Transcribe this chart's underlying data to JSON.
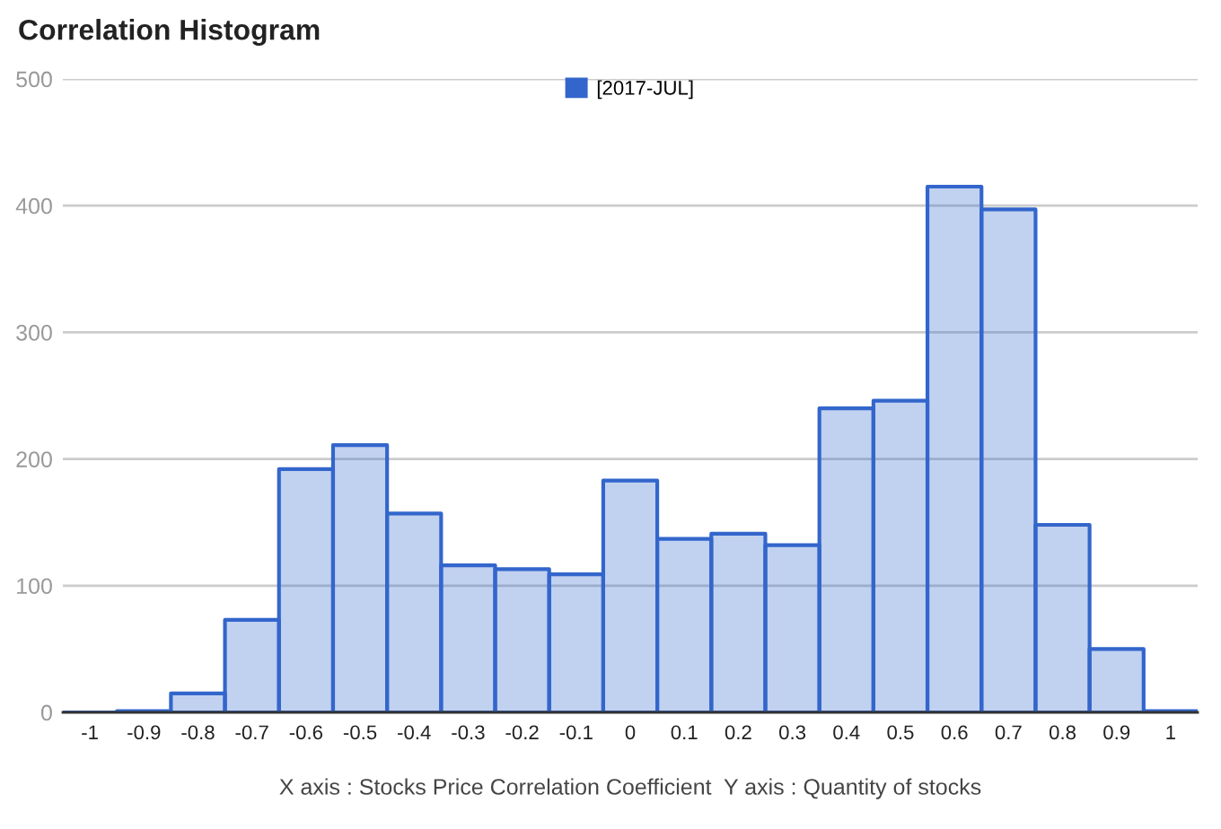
{
  "chart_data": {
    "type": "histogram",
    "title": "Correlation Histogram",
    "xlabel": "X axis : Stocks Price Correlation Coefficient  Y axis : Quantity of stocks",
    "bins": [
      -1.05,
      -0.95,
      -0.85,
      -0.75,
      -0.65,
      -0.55,
      -0.45,
      -0.35,
      -0.25,
      -0.15,
      -0.05,
      0.05,
      0.15,
      0.25,
      0.35,
      0.45,
      0.55,
      0.65,
      0.75,
      0.85,
      0.95,
      1.05
    ],
    "series": [
      {
        "name": "[2017-JUL]",
        "color": "#3366cc",
        "values": [
          0,
          1,
          15,
          73,
          192,
          211,
          157,
          116,
          113,
          109,
          183,
          137,
          141,
          132,
          240,
          246,
          415,
          397,
          148,
          50,
          1
        ]
      }
    ],
    "xlim": [
      -1.05,
      1.05
    ],
    "xticks": [
      -1,
      -0.9,
      -0.8,
      -0.7,
      -0.6,
      -0.5,
      -0.4,
      -0.3,
      -0.2,
      -0.1,
      0,
      0.1,
      0.2,
      0.3,
      0.4,
      0.5,
      0.6,
      0.7,
      0.8,
      0.9,
      1
    ],
    "ylim": [
      0,
      500
    ],
    "yticks": [
      0,
      100,
      200,
      300,
      400,
      500
    ],
    "grid": "y",
    "legend": "top"
  }
}
